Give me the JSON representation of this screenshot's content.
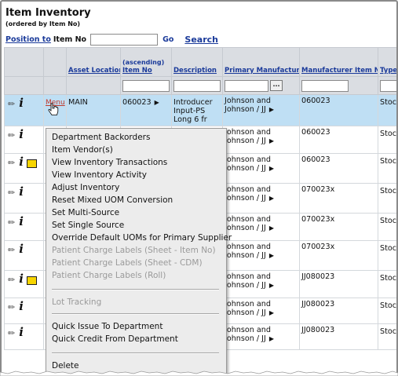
{
  "header": {
    "title": "Item Inventory",
    "subtitle": "(ordered by Item No)"
  },
  "position_bar": {
    "link_label": "Position to",
    "field_label": "Item No",
    "input_value": "",
    "go_label": "Go",
    "search_label": "Search"
  },
  "table": {
    "columns": {
      "asset_location": "Asset Location",
      "item_no_sort": "(ascending)",
      "item_no": "Item No",
      "description": "Description",
      "primary_manufacturer": "Primary Manufacturer",
      "manufacturer_item_no": "Manufacturer Item No",
      "type": "Type"
    },
    "filter_lookup_label": "...",
    "rows": [
      {
        "menu_label": "Menu",
        "asset_location": "MAIN",
        "item_no": "060023",
        "item_arrow": "▶",
        "description": "Introducer Input-PS Long 6 fr",
        "manufacturer": "Johnson and Johnson / JJ",
        "manufacturer_item_no": "060023",
        "type": "Stoc",
        "selected": true,
        "has_note": false
      },
      {
        "manufacturer": "Johnson and Johnson / JJ",
        "manufacturer_item_no": "060023",
        "type": "Stoc",
        "has_note": false
      },
      {
        "manufacturer": "Johnson and Johnson / JJ",
        "manufacturer_item_no": "060023",
        "type": "Stoc",
        "has_note": true
      },
      {
        "manufacturer": "Johnson and Johnson / JJ",
        "manufacturer_item_no": "070023x",
        "type": "Stoc",
        "has_note": false
      },
      {
        "manufacturer": "Johnson and Johnson / JJ",
        "manufacturer_item_no": "070023x",
        "type": "Stoc",
        "has_note": false
      },
      {
        "manufacturer": "Johnson and Johnson / JJ",
        "manufacturer_item_no": "070023x",
        "type": "Stoc",
        "has_note": false
      },
      {
        "manufacturer": "Johnson and Johnson / JJ",
        "manufacturer_item_no": "JJ080023",
        "type": "Stoc",
        "has_note": true
      },
      {
        "manufacturer": "Johnson and Johnson / JJ",
        "manufacturer_item_no": "JJ080023",
        "type": "Stoc",
        "has_note": false
      },
      {
        "manufacturer": "Johnson and Johnson / JJ",
        "manufacturer_item_no": "JJ080023",
        "type": "Stoc",
        "has_note": false
      }
    ]
  },
  "context_menu": {
    "items": [
      {
        "label": "Department Backorders",
        "enabled": true
      },
      {
        "label": "Item Vendor(s)",
        "enabled": true
      },
      {
        "label": "View Inventory Transactions",
        "enabled": true
      },
      {
        "label": "View Inventory Activity",
        "enabled": true
      },
      {
        "label": "Adjust Inventory",
        "enabled": true
      },
      {
        "label": "Reset Mixed UOM Conversion",
        "enabled": true
      },
      {
        "label": "Set Multi-Source",
        "enabled": true
      },
      {
        "label": "Set Single Source",
        "enabled": true
      },
      {
        "label": "Override Default UOMs for Primary Supplier",
        "enabled": true
      },
      {
        "label": "Patient Charge Labels (Sheet - Item No)",
        "enabled": false
      },
      {
        "label": "Patient Charge Labels (Sheet - CDM)",
        "enabled": false
      },
      {
        "label": "Patient Charge Labels (Roll)",
        "enabled": false
      },
      {
        "label": "Lot Tracking",
        "enabled": false
      },
      {
        "label": "Quick Issue To Department",
        "enabled": true
      },
      {
        "label": "Quick Credit From Department",
        "enabled": true
      },
      {
        "label": "Delete",
        "enabled": true
      }
    ]
  },
  "icons": {
    "edit": "pencil-icon",
    "info": "info-icon",
    "note": "note-icon",
    "expand_arrow": "triangle-right-icon"
  },
  "colors": {
    "link": "#1a3a9a",
    "menu_link": "#c0392b",
    "header_bg": "#dadde2",
    "selected_row_bg": "#bfdff4",
    "menu_bg": "#ececec",
    "disabled_text": "#9a9a9a"
  }
}
